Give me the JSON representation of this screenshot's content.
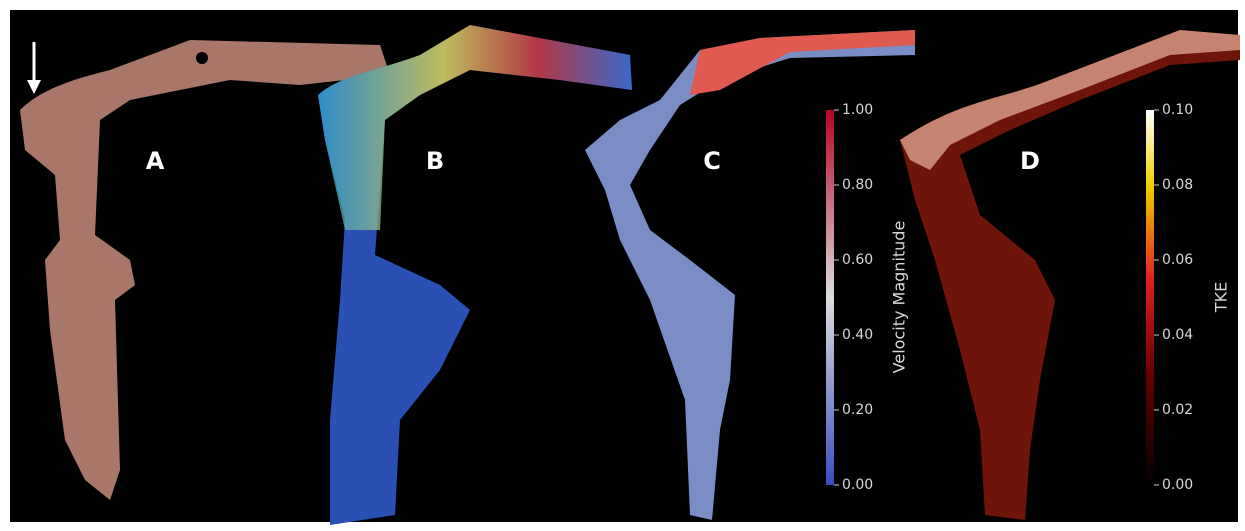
{
  "panels": [
    {
      "label": "A"
    },
    {
      "label": "B"
    },
    {
      "label": "C"
    },
    {
      "label": "D"
    }
  ],
  "colorbars": [
    {
      "title": "Velocity Magnitude",
      "range": [
        0,
        1
      ],
      "ticks": [
        {
          "value": 0,
          "label": "0.00"
        },
        {
          "value": 0.2,
          "label": "0.20"
        },
        {
          "value": 0.4,
          "label": "0.40"
        },
        {
          "value": 0.6,
          "label": "0.60"
        },
        {
          "value": 0.8,
          "label": "0.80"
        },
        {
          "value": 1,
          "label": "1.00"
        }
      ]
    },
    {
      "title": "TKE",
      "range": [
        0,
        0.1
      ],
      "ticks": [
        {
          "value": 0,
          "label": "0.00"
        },
        {
          "value": 0.02,
          "label": "0.02"
        },
        {
          "value": 0.04,
          "label": "0.04"
        },
        {
          "value": 0.06,
          "label": "0.06"
        },
        {
          "value": 0.08,
          "label": "0.08"
        },
        {
          "value": 0.1,
          "label": "0.10"
        }
      ]
    }
  ]
}
